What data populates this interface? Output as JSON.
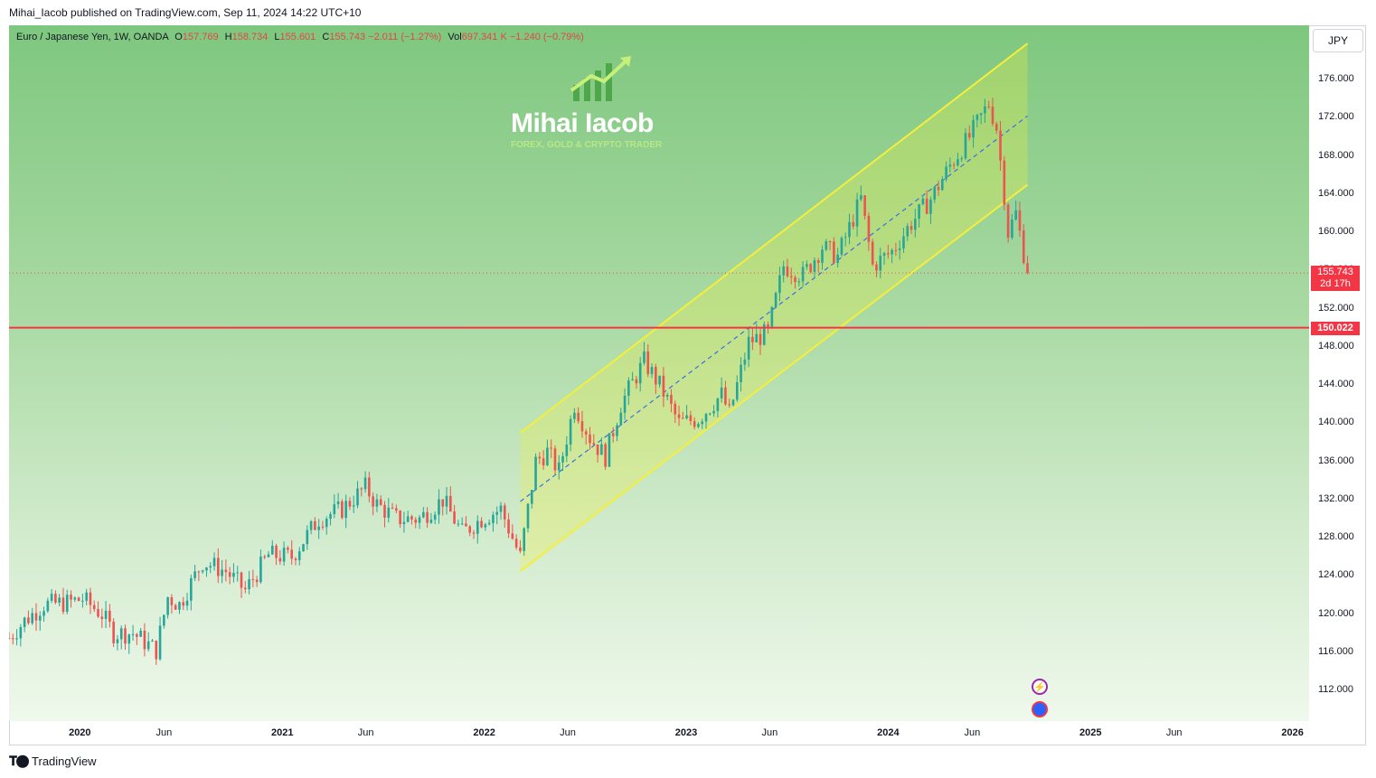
{
  "header": {
    "published": "Mihai_Iacob published on TradingView.com, Sep 11, 2024 14:22 UTC+10"
  },
  "legend": {
    "symbol": "Euro / Japanese Yen, 1W, OANDA",
    "o_label": "O",
    "o_value": "157.769",
    "h_label": "H",
    "h_value": "158.734",
    "l_label": "L",
    "l_value": "155.601",
    "c_label": "C",
    "c_value": "155.743",
    "change": "−2.011 (−1.27%)",
    "vol_label": "Vol",
    "vol_value": "697.341 K",
    "vol_change": "−1.240 (−0.79%)"
  },
  "currency_button": "JPY",
  "watermark": {
    "name": "Mihai Iacob",
    "tagline": "FOREX, GOLD & CRYPTO TRADER"
  },
  "labels": {
    "last_price": "155.743",
    "countdown": "2d 17h",
    "level": "150.022"
  },
  "footer": {
    "brand": "TradingView"
  },
  "colors": {
    "up": "#26a69a",
    "down": "#ef5350",
    "channel": "#f5ef3c",
    "midline": "#3a6ee8",
    "level": "#f23645"
  },
  "chart_data": {
    "type": "candlestick",
    "title": "Euro / Japanese Yen, 1W, OANDA",
    "x_ticks": [
      {
        "label": "2020",
        "date": "2020-01-01",
        "year": true
      },
      {
        "label": "Jun",
        "date": "2020-06-01",
        "year": false
      },
      {
        "label": "2021",
        "date": "2021-01-01",
        "year": true
      },
      {
        "label": "Jun",
        "date": "2021-06-01",
        "year": false
      },
      {
        "label": "2022",
        "date": "2022-01-01",
        "year": true
      },
      {
        "label": "Jun",
        "date": "2022-06-01",
        "year": false
      },
      {
        "label": "2023",
        "date": "2023-01-01",
        "year": true
      },
      {
        "label": "Jun",
        "date": "2023-06-01",
        "year": false
      },
      {
        "label": "2024",
        "date": "2024-01-01",
        "year": true
      },
      {
        "label": "Jun",
        "date": "2024-06-01",
        "year": false
      },
      {
        "label": "2025",
        "date": "2025-01-01",
        "year": true
      },
      {
        "label": "Jun",
        "date": "2025-06-01",
        "year": false
      },
      {
        "label": "2026",
        "date": "2026-01-01",
        "year": true
      }
    ],
    "y_ticks": [
      "176.000",
      "172.000",
      "168.000",
      "164.000",
      "160.000",
      "156.000",
      "152.000",
      "148.000",
      "144.000",
      "140.000",
      "136.000",
      "132.000",
      "128.000",
      "124.000",
      "120.000",
      "116.000",
      "112.000"
    ],
    "ylim": [
      108.8,
      181.7
    ],
    "xlim": [
      "2019-08-26",
      "2026-01-31"
    ],
    "horizontal_level": 150.022,
    "last_close": 155.743,
    "channel": {
      "upper": [
        {
          "date": "2022-03-07",
          "value": 139.0
        },
        {
          "date": "2024-09-09",
          "value": 179.8
        }
      ],
      "mid": [
        {
          "date": "2022-03-07",
          "value": 131.8
        },
        {
          "date": "2024-09-09",
          "value": 172.2
        }
      ],
      "lower": [
        {
          "date": "2022-03-07",
          "value": 124.5
        },
        {
          "date": "2024-09-09",
          "value": 165.0
        }
      ]
    },
    "anchors": [
      {
        "date": "2019-08-26",
        "value": 117.5
      },
      {
        "date": "2019-09-23",
        "value": 119.3
      },
      {
        "date": "2019-10-28",
        "value": 121.0
      },
      {
        "date": "2019-12-09",
        "value": 121.2
      },
      {
        "date": "2020-01-06",
        "value": 121.6
      },
      {
        "date": "2020-02-10",
        "value": 120.0
      },
      {
        "date": "2020-03-02",
        "value": 118.0
      },
      {
        "date": "2020-04-06",
        "value": 118.0
      },
      {
        "date": "2020-05-18",
        "value": 116.2
      },
      {
        "date": "2020-06-08",
        "value": 121.8
      },
      {
        "date": "2020-06-29",
        "value": 121.0
      },
      {
        "date": "2020-08-10",
        "value": 125.5
      },
      {
        "date": "2020-09-21",
        "value": 124.5
      },
      {
        "date": "2020-10-26",
        "value": 122.5
      },
      {
        "date": "2020-12-07",
        "value": 126.2
      },
      {
        "date": "2021-01-18",
        "value": 126.0
      },
      {
        "date": "2021-03-08",
        "value": 130.0
      },
      {
        "date": "2021-04-19",
        "value": 131.0
      },
      {
        "date": "2021-05-31",
        "value": 133.3
      },
      {
        "date": "2021-06-21",
        "value": 131.5
      },
      {
        "date": "2021-07-26",
        "value": 130.0
      },
      {
        "date": "2021-09-06",
        "value": 130.0
      },
      {
        "date": "2021-10-18",
        "value": 132.0
      },
      {
        "date": "2021-11-22",
        "value": 128.5
      },
      {
        "date": "2021-12-27",
        "value": 130.0
      },
      {
        "date": "2022-01-31",
        "value": 131.0
      },
      {
        "date": "2022-03-07",
        "value": 126.0
      },
      {
        "date": "2022-04-04",
        "value": 136.0
      },
      {
        "date": "2022-04-25",
        "value": 137.0
      },
      {
        "date": "2022-05-16",
        "value": 135.0
      },
      {
        "date": "2022-06-13",
        "value": 142.0
      },
      {
        "date": "2022-07-11",
        "value": 138.5
      },
      {
        "date": "2022-08-08",
        "value": 136.5
      },
      {
        "date": "2022-09-05",
        "value": 142.0
      },
      {
        "date": "2022-10-17",
        "value": 146.5
      },
      {
        "date": "2022-11-14",
        "value": 144.0
      },
      {
        "date": "2022-12-19",
        "value": 140.0
      },
      {
        "date": "2023-01-23",
        "value": 140.5
      },
      {
        "date": "2023-03-06",
        "value": 143.0
      },
      {
        "date": "2023-03-20",
        "value": 141.0
      },
      {
        "date": "2023-04-24",
        "value": 148.5
      },
      {
        "date": "2023-05-29",
        "value": 149.5
      },
      {
        "date": "2023-06-26",
        "value": 156.5
      },
      {
        "date": "2023-07-31",
        "value": 155.5
      },
      {
        "date": "2023-09-04",
        "value": 158.5
      },
      {
        "date": "2023-10-02",
        "value": 157.5
      },
      {
        "date": "2023-11-13",
        "value": 163.5
      },
      {
        "date": "2023-12-04",
        "value": 156.5
      },
      {
        "date": "2024-01-08",
        "value": 158.0
      },
      {
        "date": "2024-02-12",
        "value": 161.0
      },
      {
        "date": "2024-03-18",
        "value": 163.5
      },
      {
        "date": "2024-04-22",
        "value": 167.0
      },
      {
        "date": "2024-05-27",
        "value": 170.0
      },
      {
        "date": "2024-07-01",
        "value": 173.5
      },
      {
        "date": "2024-07-15",
        "value": 171.0
      },
      {
        "date": "2024-07-29",
        "value": 164.0
      },
      {
        "date": "2024-08-05",
        "value": 160.0
      },
      {
        "date": "2024-08-19",
        "value": 162.0
      },
      {
        "date": "2024-09-09",
        "value": 155.743
      }
    ]
  }
}
